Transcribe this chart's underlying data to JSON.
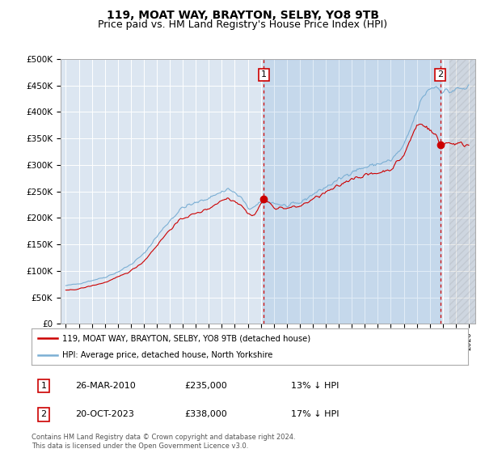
{
  "title": "119, MOAT WAY, BRAYTON, SELBY, YO8 9TB",
  "subtitle": "Price paid vs. HM Land Registry's House Price Index (HPI)",
  "ylabel_ticks": [
    "£0",
    "£50K",
    "£100K",
    "£150K",
    "£200K",
    "£250K",
    "£300K",
    "£350K",
    "£400K",
    "£450K",
    "£500K"
  ],
  "ytick_values": [
    0,
    50000,
    100000,
    150000,
    200000,
    250000,
    300000,
    350000,
    400000,
    450000,
    500000
  ],
  "ylim": [
    0,
    500000
  ],
  "vline1_x": 2010.23,
  "vline2_x": 2023.8,
  "sale1_date": "26-MAR-2010",
  "sale1_price": "£235,000",
  "sale1_hpi": "13% ↓ HPI",
  "sale2_date": "20-OCT-2023",
  "sale2_price": "£338,000",
  "sale2_hpi": "17% ↓ HPI",
  "sale1_y": 235000,
  "sale2_y": 338000,
  "legend_line1": "119, MOAT WAY, BRAYTON, SELBY, YO8 9TB (detached house)",
  "legend_line2": "HPI: Average price, detached house, North Yorkshire",
  "footer": "Contains HM Land Registry data © Crown copyright and database right 2024.\nThis data is licensed under the Open Government Licence v3.0.",
  "line_color_red": "#cc0000",
  "line_color_blue": "#7bafd4",
  "vline_color": "#cc0000",
  "plot_bg": "#dce6f1",
  "grid_color": "#ffffff",
  "title_fontsize": 10,
  "subtitle_fontsize": 9,
  "hatch_start_x": 2024.5,
  "xlim_left": 1994.6,
  "xlim_right": 2026.5
}
